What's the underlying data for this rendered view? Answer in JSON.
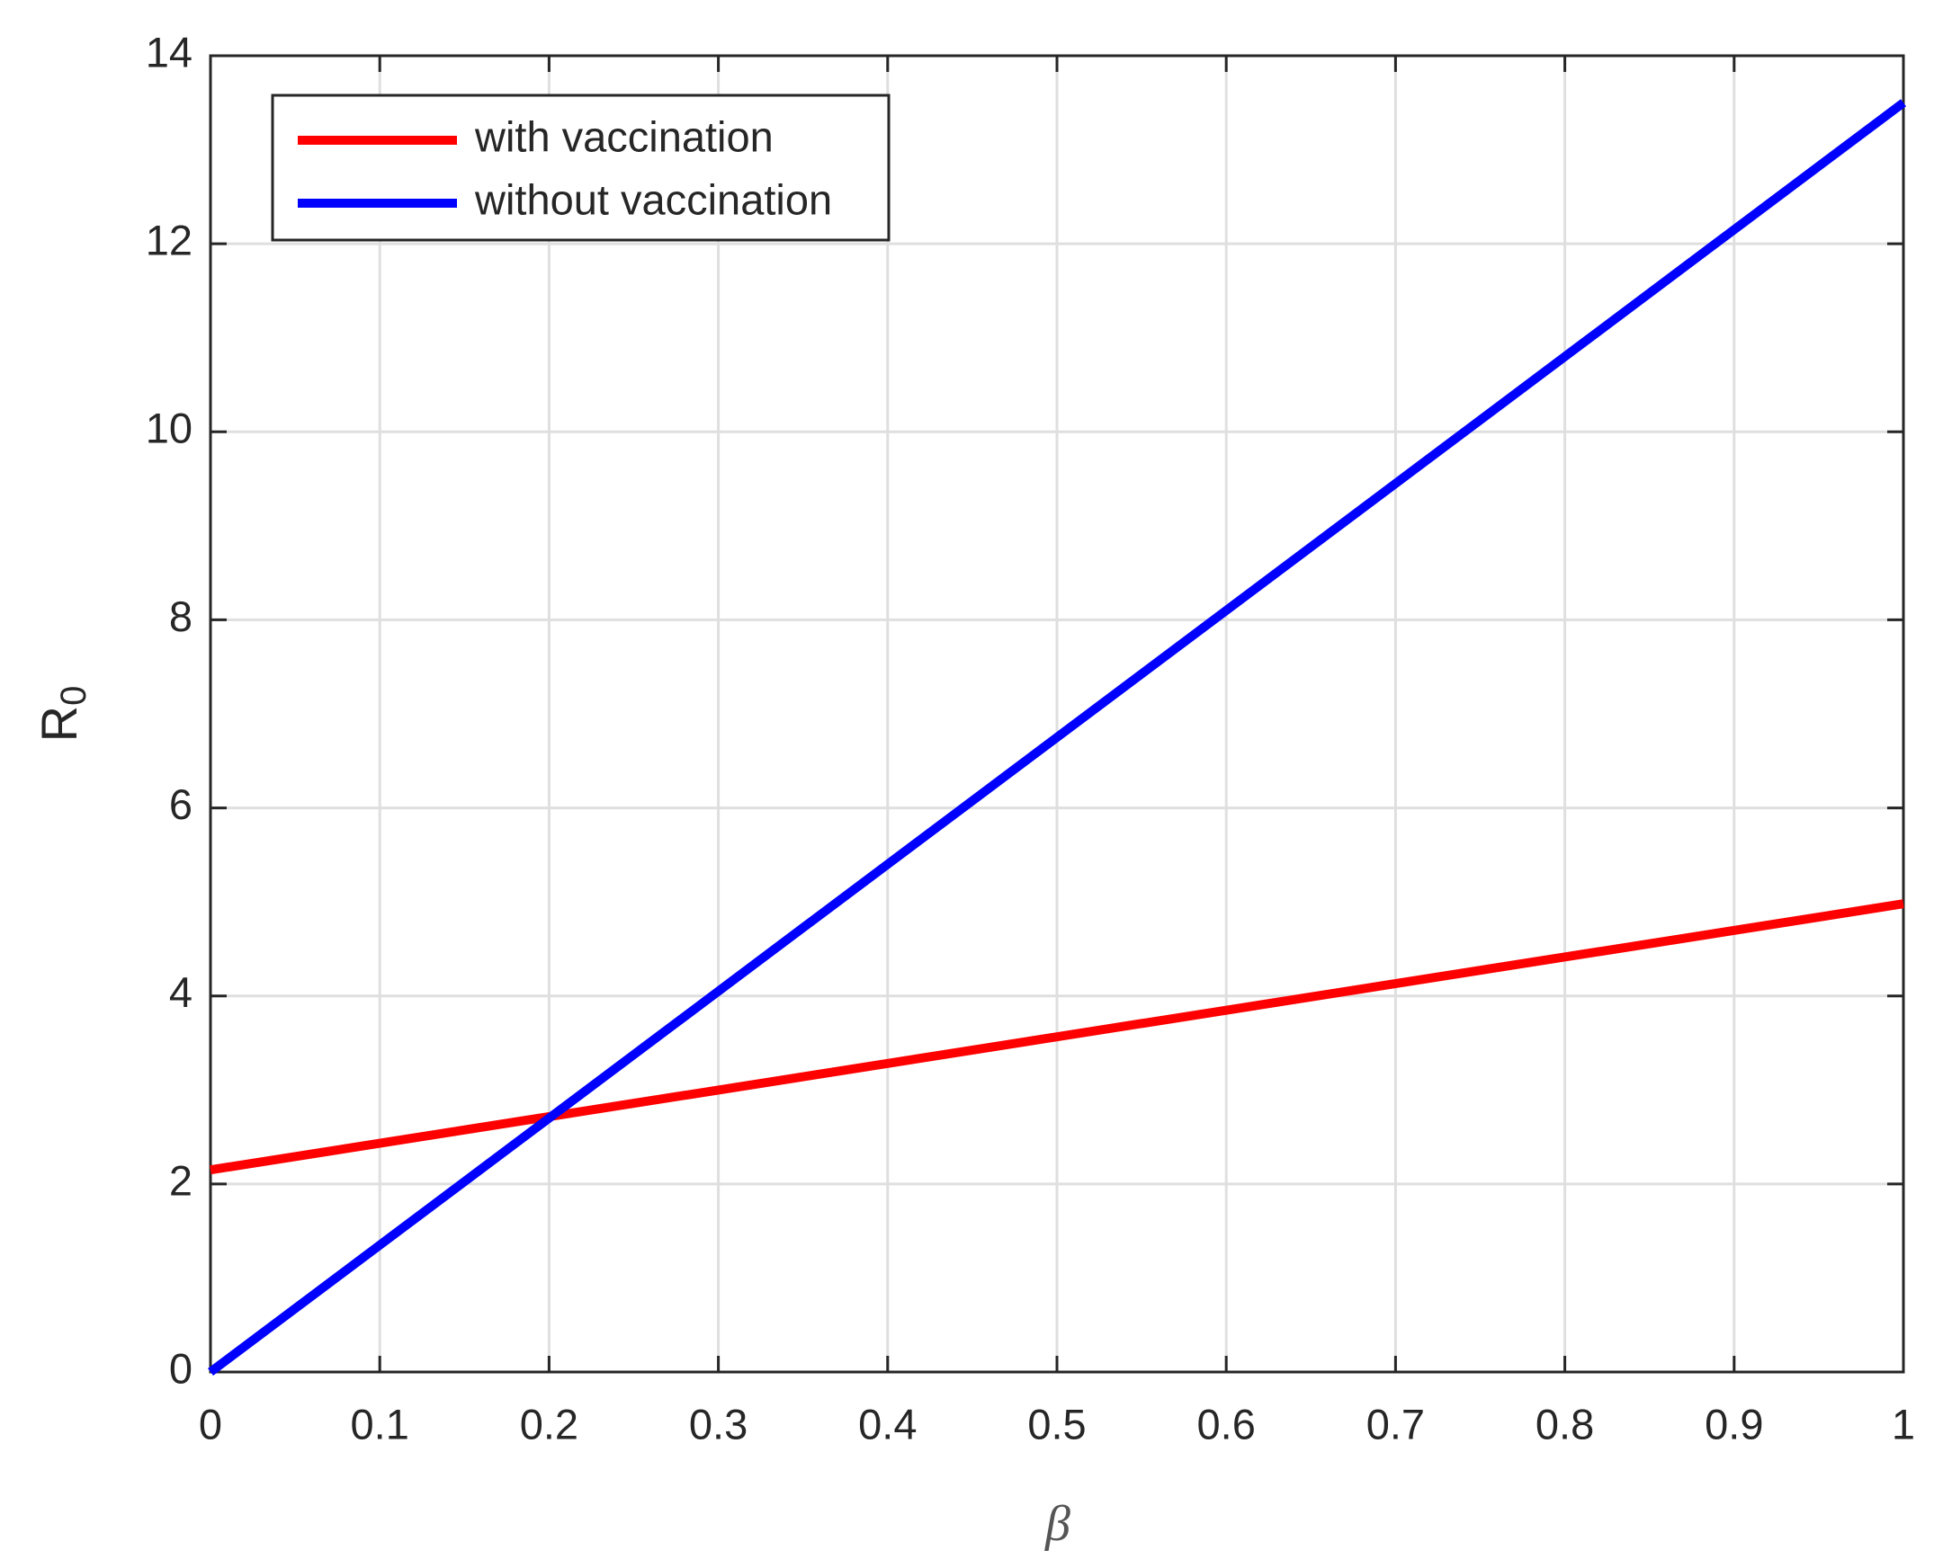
{
  "chart_data": {
    "type": "line",
    "x_label": "β",
    "y_label": "R",
    "y_label_subscript": "0",
    "x": [
      0,
      1
    ],
    "series": [
      {
        "name": "with vaccination",
        "color": "#ff0000",
        "values": [
          2.15,
          4.98
        ]
      },
      {
        "name": "without vaccination",
        "color": "#0000ff",
        "values": [
          0,
          13.5
        ]
      }
    ],
    "xlim": [
      0,
      1
    ],
    "xticks": [
      0,
      0.1,
      0.2,
      0.3,
      0.4,
      0.5,
      0.6,
      0.7,
      0.8,
      0.9,
      1
    ],
    "ylim": [
      0,
      14
    ],
    "yticks": [
      0,
      2,
      4,
      6,
      8,
      10,
      12,
      14
    ],
    "grid": true,
    "legend": "upper left"
  }
}
